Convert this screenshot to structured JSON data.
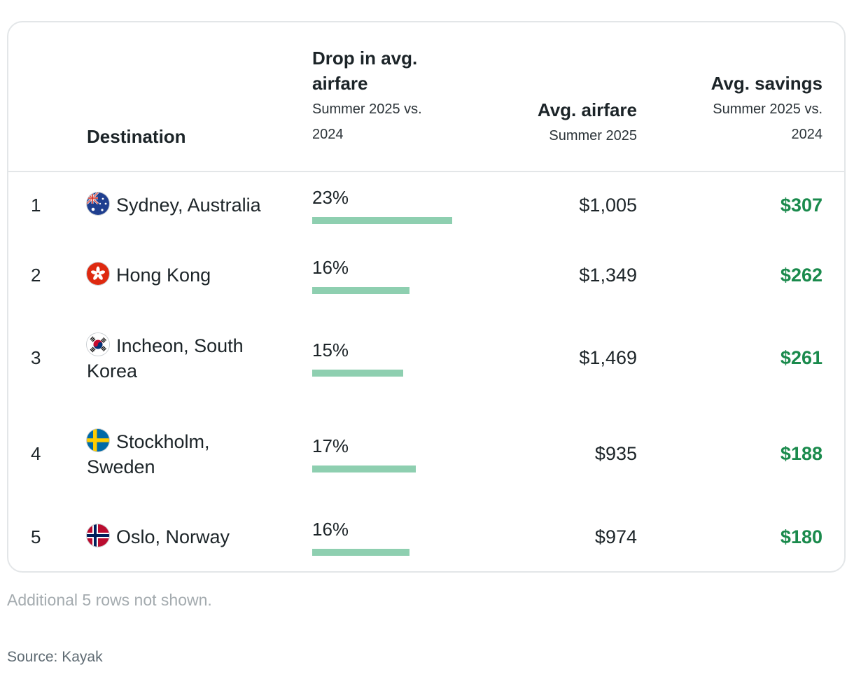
{
  "headers": {
    "destination": "Destination",
    "drop_title_1": "Drop in avg.",
    "drop_title_2": "airfare",
    "drop_sub_1": "Summer 2025 vs.",
    "drop_sub_2": "2024",
    "fare_title": "Avg. airfare",
    "fare_sub": "Summer 2025",
    "savings_title": "Avg. savings",
    "savings_sub_1": "Summer 2025 vs.",
    "savings_sub_2": "2024"
  },
  "chart_data": {
    "type": "table",
    "columns": [
      "Destination",
      "Drop in avg. airfare Summer 2025 vs. 2024",
      "Avg. airfare Summer 2025",
      "Avg. savings Summer 2025 vs. 2024"
    ],
    "rows": [
      {
        "rank": "1",
        "destination_line1": "Sydney, Australia",
        "destination_line2": "",
        "flag": "australia-flag",
        "drop_label": "23%",
        "drop": 23,
        "fare": "$1,005",
        "savings": "$307"
      },
      {
        "rank": "2",
        "destination_line1": "Hong Kong",
        "destination_line2": "",
        "flag": "hong-kong-flag",
        "drop_label": "16%",
        "drop": 16,
        "fare": "$1,349",
        "savings": "$262"
      },
      {
        "rank": "3",
        "destination_line1": "Incheon, South",
        "destination_line2": "Korea",
        "flag": "south-korea-flag",
        "drop_label": "15%",
        "drop": 15,
        "fare": "$1,469",
        "savings": "$261"
      },
      {
        "rank": "4",
        "destination_line1": "Stockholm,",
        "destination_line2": "Sweden",
        "flag": "sweden-flag",
        "drop_label": "17%",
        "drop": 17,
        "fare": "$935",
        "savings": "$188"
      },
      {
        "rank": "5",
        "destination_line1": "Oslo, Norway",
        "destination_line2": "",
        "flag": "norway-flag",
        "drop_label": "16%",
        "drop": 16,
        "fare": "$974",
        "savings": "$180"
      }
    ],
    "bar_color": "#8ecfb0",
    "savings_color": "#1a8a4c"
  },
  "footer": {
    "note": "Additional 5 rows not shown.",
    "source": "Source: Kayak"
  }
}
